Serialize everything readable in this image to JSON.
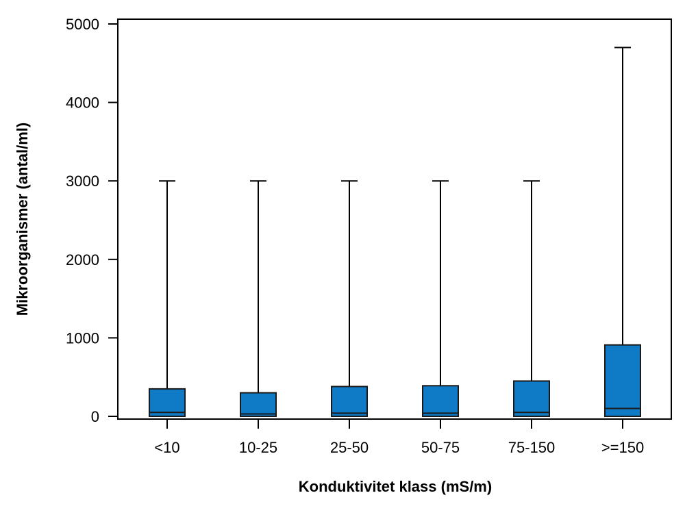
{
  "chart_data": {
    "type": "boxplot",
    "title": "",
    "xlabel": "Konduktivitet klass (mS/m)",
    "ylabel": "Mikroorganismer (antal/ml)",
    "ylim": [
      0,
      5000
    ],
    "yticks": [
      "0",
      "1000",
      "2000",
      "3000",
      "4000",
      "5000"
    ],
    "categories": [
      "<10",
      "10-25",
      "25-50",
      "50-75",
      "75-150",
      ">=150"
    ],
    "series": [
      {
        "boxes": [
          {
            "min": 0,
            "q1": 0,
            "median": 50,
            "q3": 350,
            "max": 3000
          },
          {
            "min": 0,
            "q1": 0,
            "median": 30,
            "q3": 300,
            "max": 3000
          },
          {
            "min": 0,
            "q1": 0,
            "median": 40,
            "q3": 380,
            "max": 3000
          },
          {
            "min": 0,
            "q1": 0,
            "median": 40,
            "q3": 390,
            "max": 3000
          },
          {
            "min": 0,
            "q1": 0,
            "median": 50,
            "q3": 450,
            "max": 3000
          },
          {
            "min": 0,
            "q1": 0,
            "median": 100,
            "q3": 910,
            "max": 4700
          }
        ]
      }
    ],
    "grid": false,
    "colors": {
      "box_fill": "#0f7ac6",
      "box_stroke": "#1a1a1a",
      "whisker": "#000000",
      "axis": "#000000"
    }
  }
}
